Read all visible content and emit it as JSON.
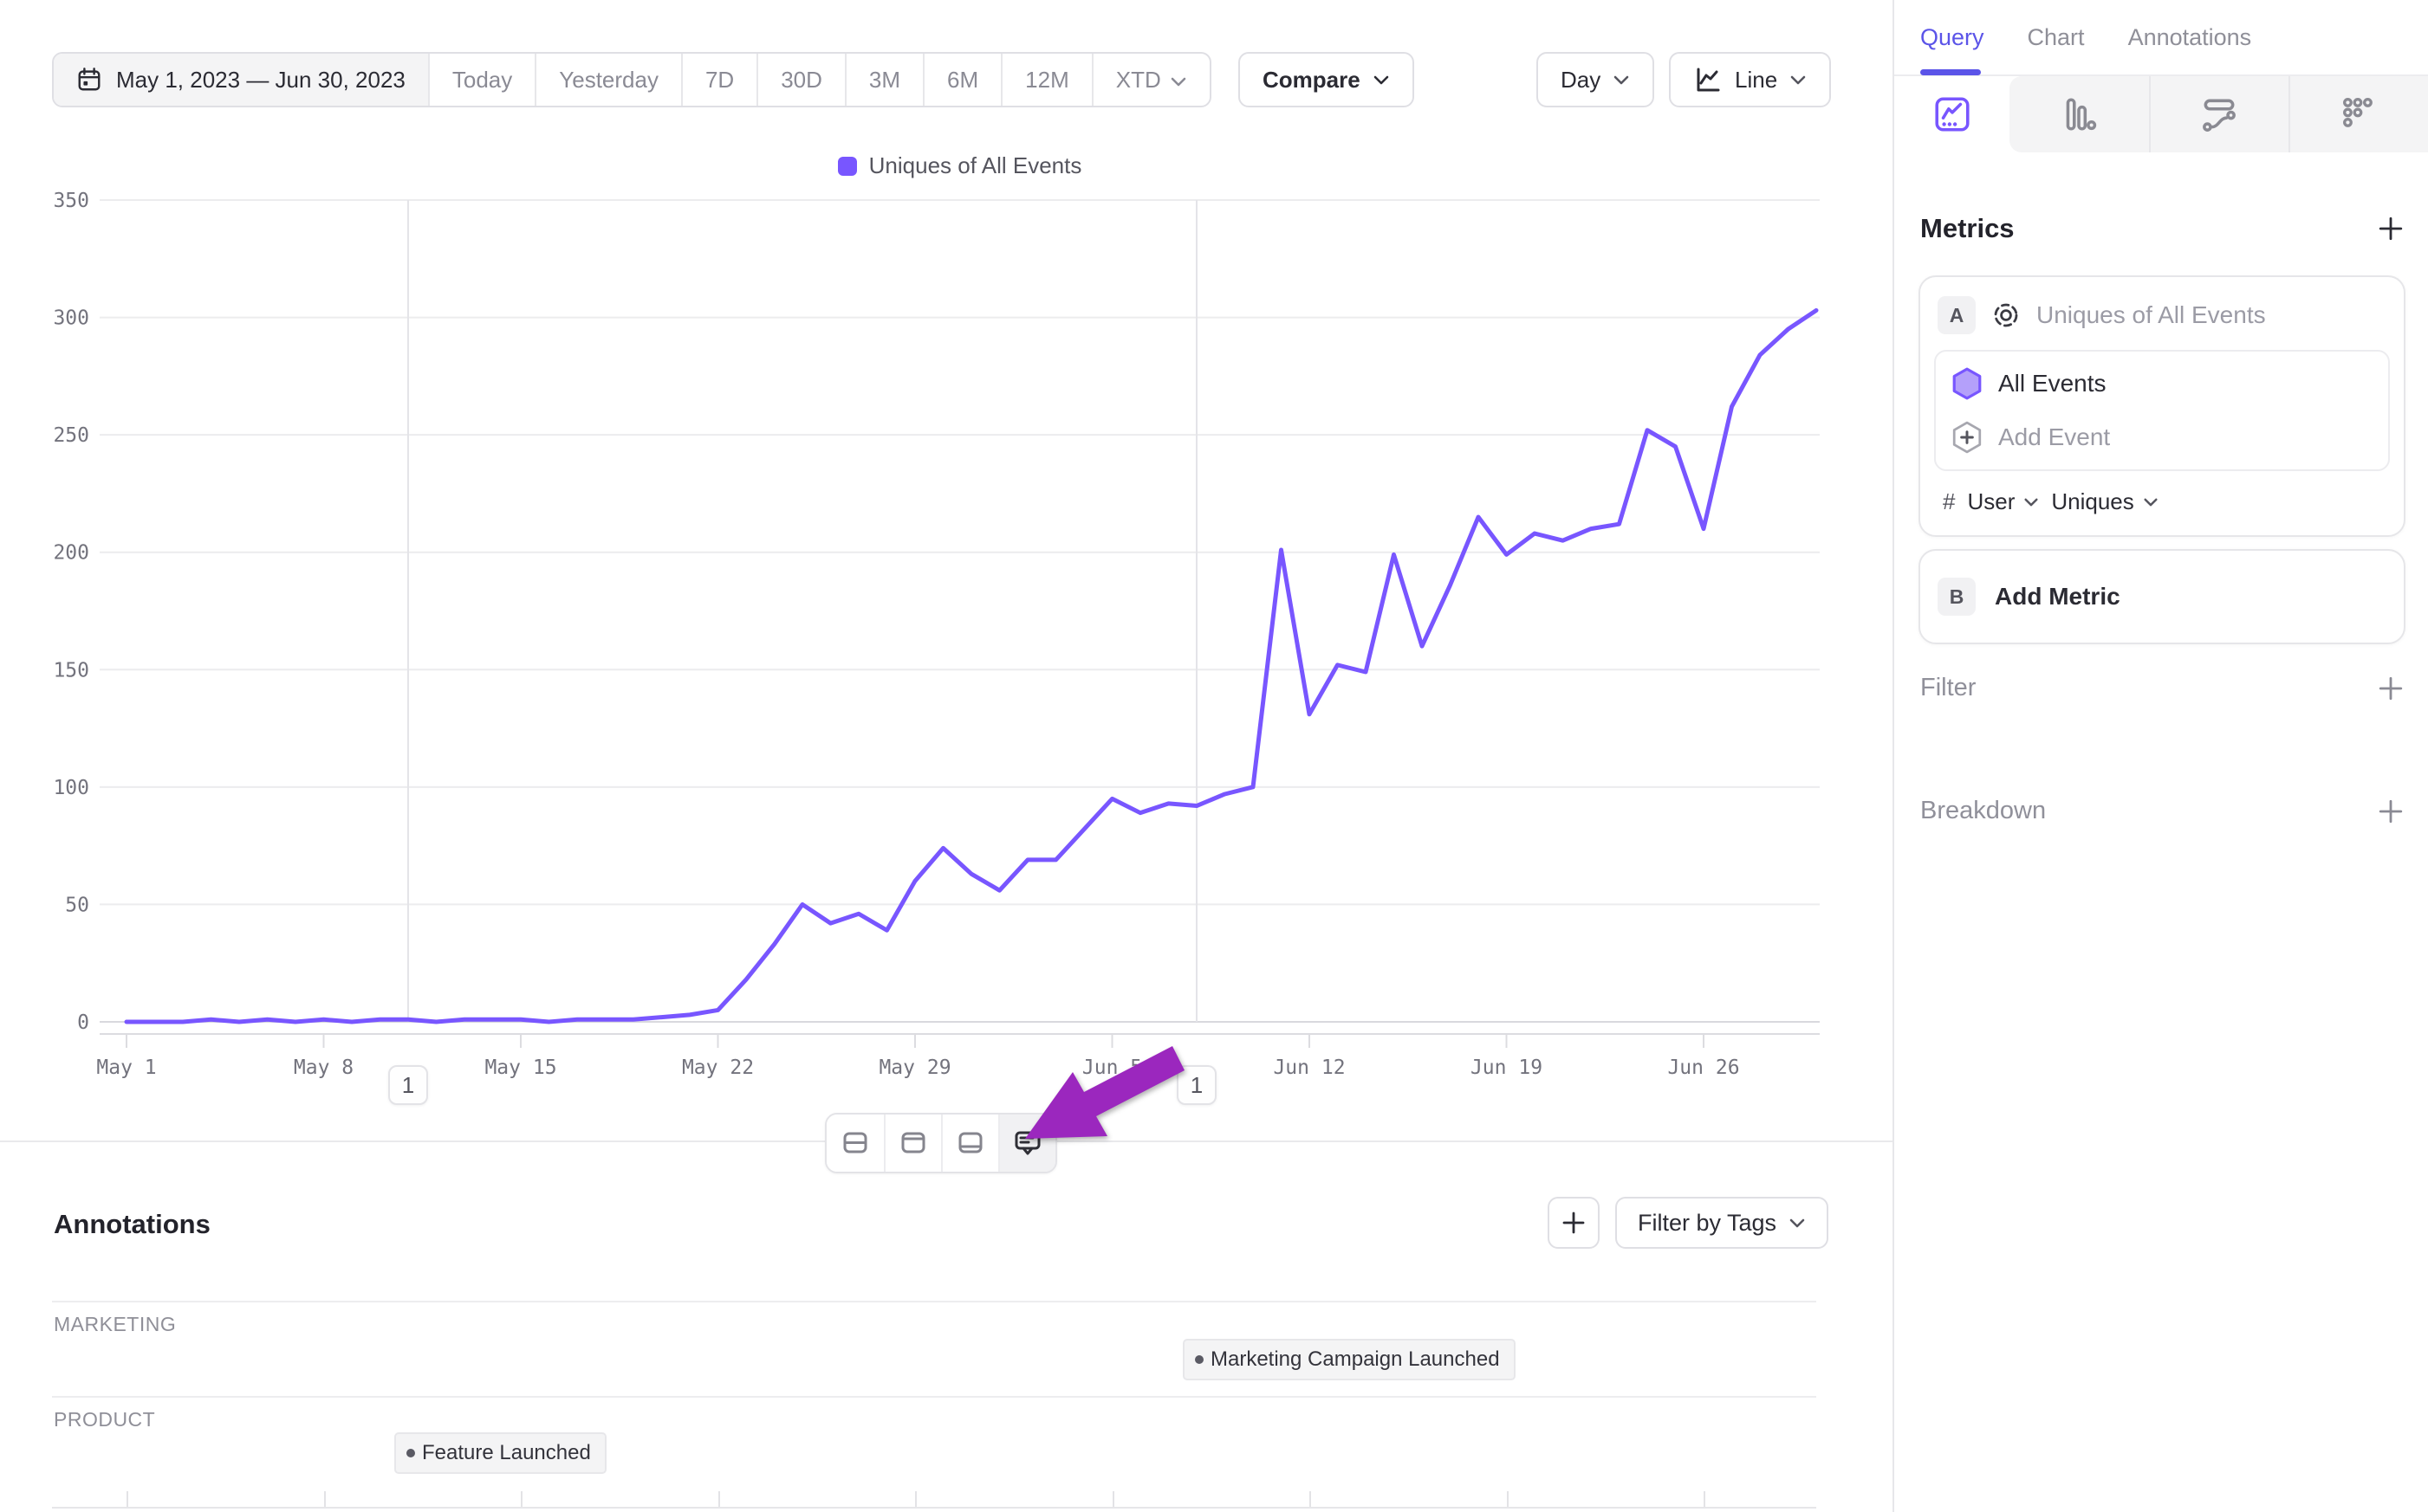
{
  "toolbar": {
    "date_range": "May 1, 2023 — Jun 30, 2023",
    "presets": [
      "Today",
      "Yesterday",
      "7D",
      "30D",
      "3M",
      "6M",
      "12M",
      "XTD"
    ],
    "compare_label": "Compare",
    "interval_label": "Day",
    "chart_type_label": "Line"
  },
  "legend": {
    "label": "Uniques of All Events",
    "color": "#7856FF"
  },
  "chart_data": {
    "type": "line",
    "series_name": "Uniques of All Events",
    "line_color": "#7856FF",
    "x_unit": "day",
    "x_start": "May 1, 2023",
    "x_end": "Jun 30, 2023",
    "x_tick_labels": [
      "May 1",
      "May 8",
      "May 15",
      "May 22",
      "May 29",
      "Jun 5",
      "Jun 12",
      "Jun 19",
      "Jun 26"
    ],
    "x_tick_days": [
      0,
      7,
      14,
      21,
      28,
      35,
      42,
      49,
      56
    ],
    "y_ticks": [
      0,
      50,
      100,
      150,
      200,
      250,
      300,
      350
    ],
    "ylim": [
      0,
      350
    ],
    "grid": true,
    "legend_position": "top-center",
    "values": [
      0,
      0,
      0,
      1,
      0,
      1,
      0,
      1,
      0,
      1,
      1,
      0,
      1,
      1,
      1,
      0,
      1,
      1,
      1,
      2,
      3,
      5,
      18,
      33,
      50,
      42,
      46,
      39,
      60,
      74,
      63,
      56,
      69,
      69,
      82,
      95,
      89,
      93,
      92,
      97,
      100,
      201,
      131,
      152,
      149,
      199,
      160,
      186,
      215,
      199,
      208,
      205,
      210,
      212,
      252,
      245,
      210,
      262,
      284,
      295,
      303
    ],
    "annotation_markers": [
      {
        "day": 10,
        "count": "1"
      },
      {
        "day": 38,
        "count": "1"
      }
    ]
  },
  "chart_footer": {
    "view_buttons": [
      "split-horizontal",
      "panel-top",
      "panel-bottom",
      "comment"
    ],
    "active_view": "comment"
  },
  "annotations_panel": {
    "title": "Annotations",
    "add_label": "+",
    "filter_label": "Filter by Tags",
    "groups": [
      {
        "label": "MARKETING",
        "items": [
          {
            "label": "Marketing Campaign Launched",
            "day": 38
          }
        ]
      },
      {
        "label": "PRODUCT",
        "items": [
          {
            "label": "Feature Launched",
            "day": 10
          }
        ]
      }
    ]
  },
  "sidebar": {
    "tabs": [
      "Query",
      "Chart",
      "Annotations"
    ],
    "active_tab": "Query",
    "chart_type_icons": [
      "insights-line",
      "bar",
      "flows",
      "dots-funnel"
    ],
    "metrics": {
      "title": "Metrics",
      "metric_a": {
        "id": "A",
        "name": "Uniques of All Events",
        "event": "All Events",
        "add_event_label": "Add Event",
        "unit_prefix": "#",
        "entity": "User",
        "aggregation": "Uniques"
      },
      "add_metric": {
        "id": "B",
        "label": "Add Metric"
      }
    },
    "filter_label": "Filter",
    "breakdown_label": "Breakdown"
  },
  "arrow": {
    "color": "#9B27BE"
  }
}
